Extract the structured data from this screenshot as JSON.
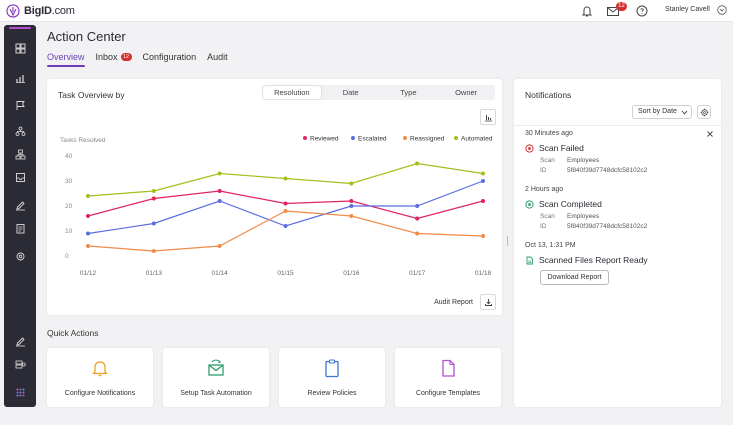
{
  "header": {
    "logo_text_bold": "BigID",
    "logo_text_light": ".com",
    "mail_badge": "12",
    "user_name": "Stanley Cavell"
  },
  "page": {
    "title": "Action Center",
    "tabs": [
      {
        "label": "Overview",
        "active": true
      },
      {
        "label": "Inbox",
        "badge": "12"
      },
      {
        "label": "Configuration"
      },
      {
        "label": "Audit"
      }
    ]
  },
  "task_overview": {
    "title": "Task Overview by",
    "group_by": [
      "Resolution",
      "Date",
      "Type",
      "Owner"
    ],
    "selected_group": "Resolution",
    "audit_report_label": "Audit Report"
  },
  "chart_data": {
    "type": "line",
    "ylabel": "Tasks Resolved",
    "ylim": [
      0,
      40
    ],
    "yticks": [
      0,
      10,
      20,
      30,
      40
    ],
    "x": [
      "01/12",
      "01/13",
      "01/14",
      "01/15",
      "01/16",
      "01/17",
      "01/18"
    ],
    "grid": false,
    "legend_position": "top-right",
    "series": [
      {
        "name": "Reviewed",
        "color": "#e0245e",
        "values": [
          16,
          23,
          26,
          21,
          22,
          15,
          22
        ]
      },
      {
        "name": "Escalated",
        "color": "#5b6ee1",
        "values": [
          9,
          13,
          22,
          12,
          20,
          20,
          30
        ]
      },
      {
        "name": "Reassigned",
        "color": "#f28b49",
        "values": [
          4,
          2,
          4,
          18,
          16,
          9,
          8
        ]
      },
      {
        "name": "Automated",
        "color": "#a0c11b",
        "values": [
          24,
          26,
          33,
          31,
          29,
          37,
          33
        ]
      }
    ]
  },
  "quick_actions": {
    "title": "Quick Actions",
    "items": [
      {
        "label": "Configure Notifications",
        "icon": "bell-icon"
      },
      {
        "label": "Setup Task Automation",
        "icon": "mail-automation-icon"
      },
      {
        "label": "Review Policies",
        "icon": "clipboard-icon"
      },
      {
        "label": "Configure Templates",
        "icon": "document-icon"
      }
    ]
  },
  "notifications": {
    "title": "Notifications",
    "sort_label": "Sort by Date",
    "groups": [
      {
        "time": "30 Minutes ago",
        "title": "Scan Failed",
        "scan_key": "Scan",
        "scan_value": "Employees",
        "id_key": "ID",
        "id_value": "5f840f39d7748dcfc58102c2"
      },
      {
        "time": "2 Hours ago",
        "title": "Scan Completed",
        "scan_key": "Scan",
        "scan_value": "Employees",
        "id_key": "ID",
        "id_value": "5f840f39d7748dcfc58102c2"
      },
      {
        "time": "Oct 13, 1:31 PM",
        "title": "Scanned Files Report Ready",
        "button": "Download Report"
      }
    ]
  },
  "colors": {
    "accent": "#6a3fb5",
    "sidebar": "#2b2b35",
    "error": "#d32f2f",
    "success": "#2e9e6a"
  }
}
